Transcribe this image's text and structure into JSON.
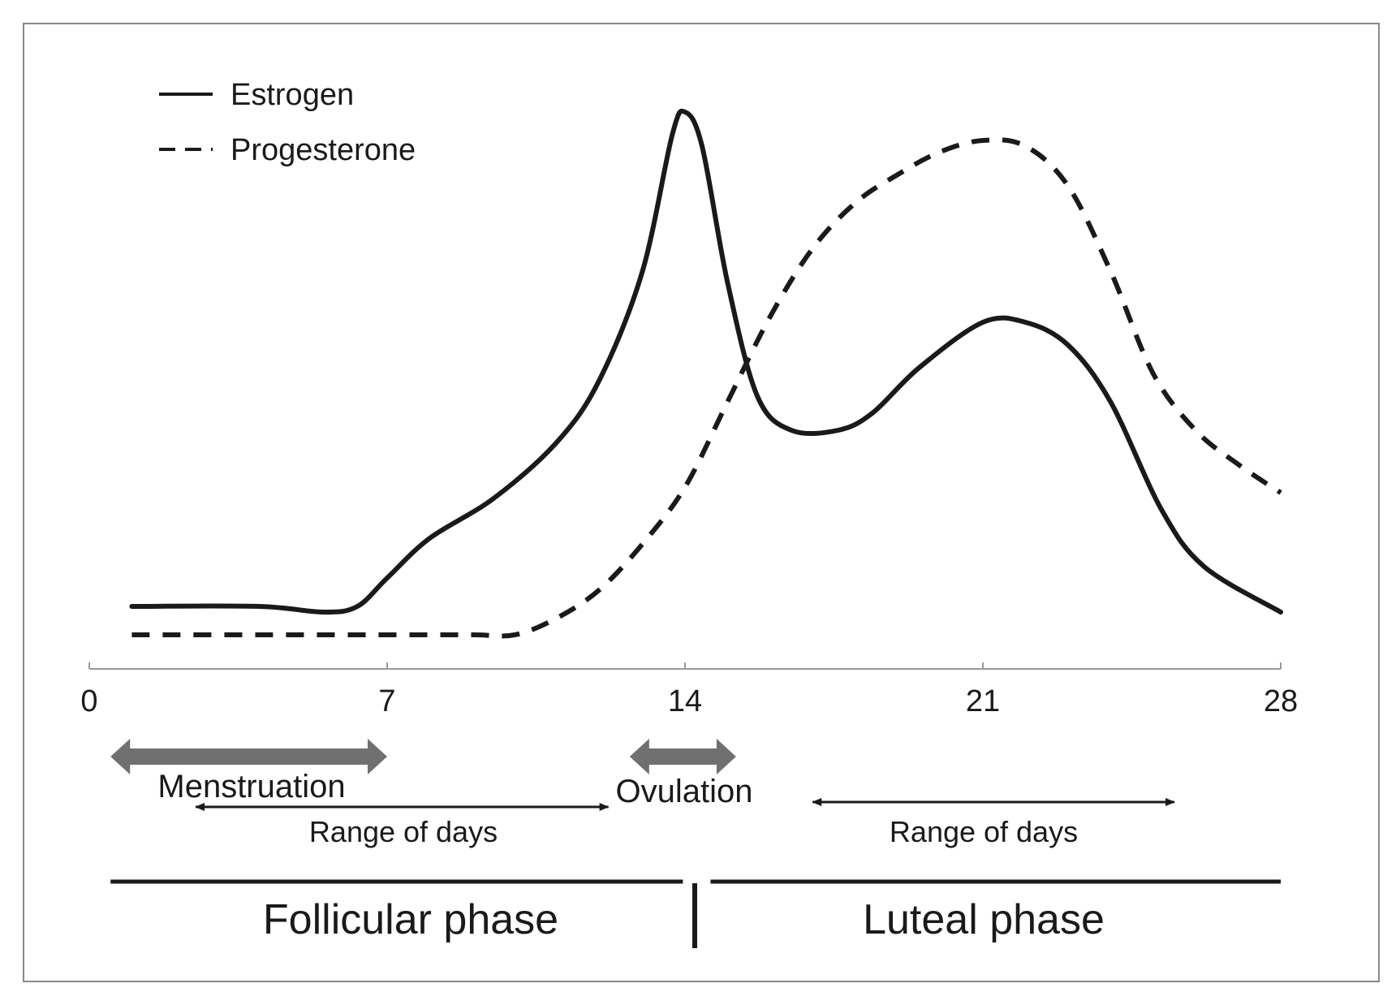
{
  "chart_data": {
    "type": "line",
    "title": "",
    "xlabel": "",
    "ylabel": "",
    "xlim": [
      0,
      28
    ],
    "ylim": [
      0,
      10
    ],
    "xticks": [
      "0",
      "7",
      "14",
      "21",
      "28"
    ],
    "xtick_values": [
      0,
      7,
      14,
      21,
      28
    ],
    "grid": false,
    "legend": {
      "position": "top-left",
      "entries": [
        "Estrogen",
        "Progesterone"
      ]
    },
    "series": [
      {
        "name": "Estrogen",
        "style": "solid",
        "x": [
          1,
          4,
          5.5,
          6.3,
          7,
          8,
          9.5,
          11,
          12,
          13,
          13.7,
          14,
          14.4,
          15,
          15.7,
          16.5,
          17.6,
          18.4,
          19.5,
          21,
          22,
          23,
          24,
          25.2,
          26.2,
          28
        ],
        "y": [
          0.9,
          0.9,
          0.8,
          0.9,
          1.4,
          2.1,
          2.8,
          3.8,
          4.9,
          6.8,
          9.2,
          9.6,
          9.0,
          6.6,
          4.6,
          4.0,
          4.0,
          4.3,
          5.1,
          5.9,
          5.9,
          5.5,
          4.5,
          2.6,
          1.6,
          0.8
        ]
      },
      {
        "name": "Progesterone",
        "style": "dashed",
        "x": [
          1,
          4,
          7,
          9,
          10,
          11,
          12,
          13,
          14,
          15,
          16,
          17,
          18,
          19,
          20,
          21,
          22,
          23,
          24,
          25,
          26,
          27,
          28
        ],
        "y": [
          0.4,
          0.4,
          0.4,
          0.4,
          0.4,
          0.7,
          1.2,
          2.0,
          3.0,
          4.5,
          6.0,
          7.2,
          8.0,
          8.5,
          8.9,
          9.1,
          9.0,
          8.3,
          6.8,
          5.0,
          4.0,
          3.4,
          2.9
        ]
      }
    ],
    "annotations": {
      "menstruation": {
        "label": "Menstruation",
        "from_day": 0.5,
        "to_day": 7
      },
      "ovulation": {
        "label": "Ovulation",
        "from_day": 12.7,
        "to_day": 15.2
      },
      "follicular_range": {
        "label": "Range of days",
        "from_day": 2.5,
        "to_day": 12.2
      },
      "luteal_range": {
        "label": "Range of days",
        "from_day": 17,
        "to_day": 25.5
      },
      "follicular_phase": {
        "label": "Follicular phase",
        "from_day": 0.5,
        "to_day": 14
      },
      "luteal_phase": {
        "label": "Luteal phase",
        "from_day": 14.6,
        "to_day": 28
      }
    }
  },
  "colors": {
    "line": "#1a1a1a",
    "thick_arrow": "#707070",
    "border": "#8a8a8a"
  }
}
